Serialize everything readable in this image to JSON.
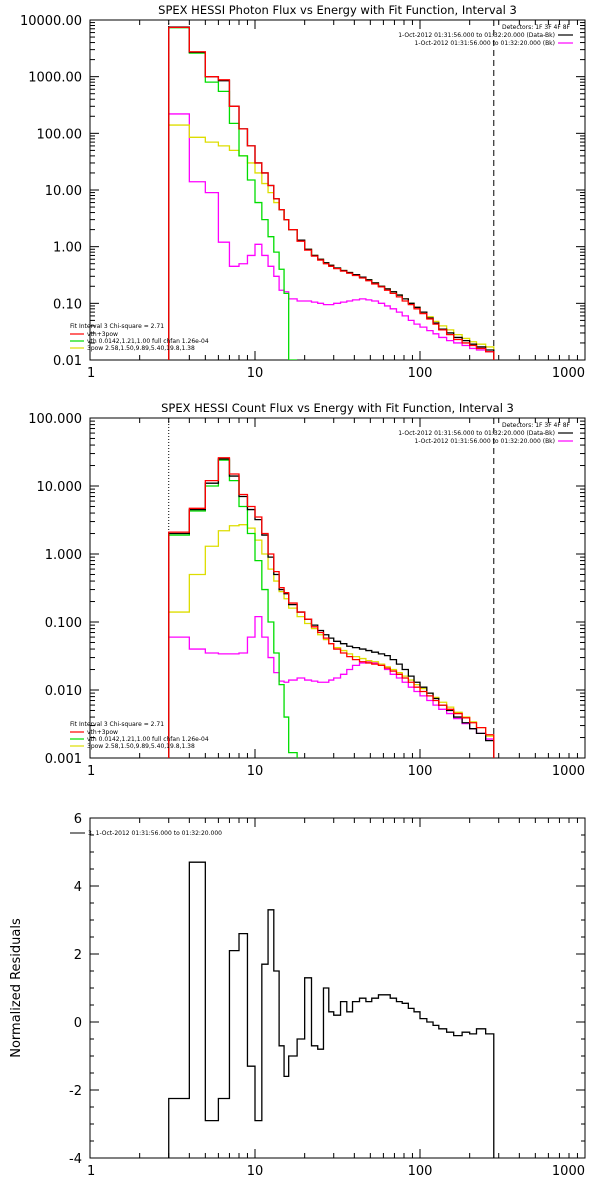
{
  "chart_data": [
    {
      "type": "line",
      "scale": {
        "x": "log",
        "y": "log"
      },
      "title": "SPEX HESSI Photon Flux vs Energy with Fit Function, Interval 3",
      "xlim": [
        1,
        1000
      ],
      "ylim": [
        0.01,
        10000
      ],
      "x_ticks": [
        1,
        10,
        100,
        1000
      ],
      "x_tick_labels": [
        "1",
        "10",
        "100",
        "1000"
      ],
      "y_ticks": [
        0.01,
        0.1,
        1,
        10,
        100,
        1000,
        10000
      ],
      "y_tick_labels": [
        "0.01",
        "0.10",
        "1.00",
        "10.00",
        "100.00",
        "1000.00",
        "10000.00"
      ],
      "legend_top_right": {
        "detectors": "Detectors: 1F 3F 4F 8F",
        "entries": [
          {
            "text": "1-Oct-2012 01:31:56.000 to 01:32:20.000 (Data-Bk)",
            "color": "#000000"
          },
          {
            "text": "1-Oct-2012 01:31:56.000 to 01:32:20.000 (Bk)",
            "color": "#ff00ff"
          }
        ]
      },
      "legend_bottom_left": {
        "header": "Fit Interval 3   Chi-square = 2.71",
        "entries": [
          {
            "text": "vth+3pow",
            "color": "#ff0000"
          },
          {
            "text": "vth 0.0142,1.21,1.00  full chfan 1.26e-04",
            "color": "#00dd00"
          },
          {
            "text": "3pow 2.58,1.50,9.89,5.40,19.8,1.38",
            "color": "#dddd00"
          }
        ]
      },
      "vlines": [
        {
          "x": 3,
          "style": "dotted",
          "color": "#000000"
        },
        {
          "x": 280,
          "style": "dashed",
          "color": "#000000"
        }
      ],
      "bin_edges": [
        3,
        4,
        5,
        6,
        7,
        8,
        9,
        10,
        11,
        12,
        13,
        14,
        15,
        16,
        18,
        20,
        22,
        24,
        26,
        28,
        30,
        33,
        36,
        39,
        43,
        47,
        51,
        56,
        61,
        66,
        72,
        78,
        85,
        92,
        100,
        110,
        120,
        130,
        145,
        160,
        180,
        200,
        220,
        250,
        280
      ],
      "series": [
        {
          "color": "#000000",
          "values": [
            7500,
            2700,
            1000,
            850,
            300,
            120,
            60,
            30,
            20,
            12,
            7,
            4.5,
            3,
            2,
            1.3,
            0.9,
            0.7,
            0.6,
            0.52,
            0.47,
            0.42,
            0.38,
            0.35,
            0.32,
            0.29,
            0.26,
            0.23,
            0.2,
            0.18,
            0.16,
            0.14,
            0.12,
            0.1,
            0.085,
            0.07,
            0.055,
            0.045,
            0.035,
            0.03,
            0.025,
            0.022,
            0.019,
            0.017,
            0.015
          ]
        },
        {
          "color": "#ff0000",
          "values": [
            7400,
            2750,
            1000,
            880,
            300,
            120,
            60,
            30,
            20,
            12,
            7,
            4.5,
            3,
            2,
            1.25,
            0.87,
            0.68,
            0.58,
            0.5,
            0.45,
            0.41,
            0.37,
            0.34,
            0.31,
            0.28,
            0.25,
            0.22,
            0.195,
            0.17,
            0.15,
            0.13,
            0.11,
            0.095,
            0.08,
            0.066,
            0.053,
            0.043,
            0.034,
            0.028,
            0.023,
            0.02,
            0.018,
            0.016,
            0.014
          ]
        },
        {
          "color": "#00dd00",
          "values": [
            7300,
            2600,
            800,
            550,
            150,
            40,
            15,
            6,
            3,
            1.5,
            0.8,
            0.4,
            0.15,
            0.008
          ]
        },
        {
          "color": "#dddd00",
          "values": [
            140,
            85,
            70,
            60,
            50,
            40,
            30,
            20,
            13,
            9,
            6,
            4.5,
            3,
            2,
            1.3,
            0.9,
            0.7,
            0.6,
            0.52,
            0.47,
            0.42,
            0.38,
            0.35,
            0.32,
            0.29,
            0.26,
            0.23,
            0.2,
            0.18,
            0.16,
            0.14,
            0.12,
            0.1,
            0.085,
            0.07,
            0.058,
            0.048,
            0.04,
            0.034,
            0.028,
            0.024,
            0.021,
            0.019,
            0.017
          ]
        },
        {
          "color": "#ff00ff",
          "values": [
            220,
            14,
            9,
            1.2,
            0.45,
            0.5,
            0.7,
            1.1,
            0.7,
            0.45,
            0.3,
            0.17,
            0.16,
            0.12,
            0.11,
            0.11,
            0.105,
            0.1,
            0.095,
            0.095,
            0.1,
            0.105,
            0.11,
            0.115,
            0.12,
            0.115,
            0.11,
            0.1,
            0.09,
            0.08,
            0.07,
            0.06,
            0.05,
            0.043,
            0.038,
            0.033,
            0.029,
            0.025,
            0.022,
            0.02,
            0.018,
            0.016,
            0.015,
            0.014
          ]
        }
      ]
    },
    {
      "type": "line",
      "scale": {
        "x": "log",
        "y": "log"
      },
      "title": "SPEX HESSI Count Flux vs Energy with Fit Function, Interval 3",
      "xlim": [
        1,
        1000
      ],
      "ylim": [
        0.001,
        100
      ],
      "x_ticks": [
        1,
        10,
        100,
        1000
      ],
      "x_tick_labels": [
        "1",
        "10",
        "100",
        "1000"
      ],
      "y_ticks": [
        0.001,
        0.01,
        0.1,
        1,
        10,
        100
      ],
      "y_tick_labels": [
        "0.001",
        "0.010",
        "0.100",
        "1.000",
        "10.000",
        "100.000"
      ],
      "legend_top_right": {
        "detectors": "Detectors: 1F 3F 4F 8F",
        "entries": [
          {
            "text": "1-Oct-2012 01:31:56.000 to 01:32:20.000 (Data-Bk)",
            "color": "#000000"
          },
          {
            "text": "1-Oct-2012 01:31:56.000 to 01:32:20.000 (Bk)",
            "color": "#ff00ff"
          }
        ]
      },
      "legend_bottom_left": {
        "header": "Fit Interval 3   Chi-square = 2.71",
        "entries": [
          {
            "text": "vth+3pow",
            "color": "#ff0000"
          },
          {
            "text": "vth 0.0142,1.21,1.00  full chfan 1.26e-04",
            "color": "#00dd00"
          },
          {
            "text": "3pow 2.58,1.50,9.89,5.40,19.8,1.38",
            "color": "#dddd00"
          }
        ]
      },
      "vlines": [
        {
          "x": 3,
          "style": "dotted",
          "color": "#000000"
        },
        {
          "x": 280,
          "style": "dashed",
          "color": "#000000"
        }
      ],
      "bin_edges": [
        3,
        4,
        5,
        6,
        7,
        8,
        9,
        10,
        11,
        12,
        13,
        14,
        15,
        16,
        18,
        20,
        22,
        24,
        26,
        28,
        30,
        33,
        36,
        39,
        43,
        47,
        51,
        56,
        61,
        66,
        72,
        78,
        85,
        92,
        100,
        110,
        120,
        130,
        145,
        160,
        180,
        200,
        220,
        250,
        280
      ],
      "series": [
        {
          "color": "#000000",
          "values": [
            2.0,
            4.5,
            11,
            25,
            14,
            7,
            4.5,
            3.2,
            1.9,
            0.9,
            0.5,
            0.3,
            0.26,
            0.18,
            0.14,
            0.11,
            0.09,
            0.075,
            0.065,
            0.058,
            0.052,
            0.048,
            0.044,
            0.042,
            0.04,
            0.038,
            0.036,
            0.034,
            0.032,
            0.028,
            0.024,
            0.02,
            0.016,
            0.013,
            0.011,
            0.009,
            0.0075,
            0.006,
            0.005,
            0.004,
            0.0033,
            0.0027,
            0.0023,
            0.0018
          ]
        },
        {
          "color": "#ff0000",
          "values": [
            2.1,
            4.7,
            12,
            26,
            15,
            7.5,
            5,
            3.5,
            2,
            1,
            0.55,
            0.32,
            0.27,
            0.19,
            0.14,
            0.11,
            0.085,
            0.07,
            0.058,
            0.048,
            0.04,
            0.035,
            0.031,
            0.028,
            0.026,
            0.025,
            0.024,
            0.023,
            0.021,
            0.019,
            0.017,
            0.015,
            0.013,
            0.011,
            0.0095,
            0.0082,
            0.007,
            0.006,
            0.0052,
            0.0045,
            0.0039,
            0.0033,
            0.0028,
            0.0022
          ]
        },
        {
          "color": "#00dd00",
          "values": [
            1.9,
            4.3,
            10,
            24,
            12,
            5,
            2,
            0.8,
            0.3,
            0.1,
            0.035,
            0.012,
            0.004,
            0.0012
          ]
        },
        {
          "color": "#dddd00",
          "values": [
            0.14,
            0.5,
            1.3,
            2.2,
            2.6,
            2.7,
            2.4,
            1.6,
            1.0,
            0.6,
            0.4,
            0.28,
            0.22,
            0.16,
            0.12,
            0.095,
            0.08,
            0.065,
            0.055,
            0.048,
            0.042,
            0.038,
            0.034,
            0.031,
            0.029,
            0.027,
            0.026,
            0.024,
            0.022,
            0.02,
            0.018,
            0.016,
            0.014,
            0.012,
            0.0105,
            0.009,
            0.0078,
            0.0066,
            0.0056,
            0.0047,
            0.004,
            0.0034,
            0.0028,
            0.0021
          ]
        },
        {
          "color": "#ff00ff",
          "values": [
            0.06,
            0.04,
            0.035,
            0.034,
            0.034,
            0.035,
            0.06,
            0.12,
            0.06,
            0.03,
            0.018,
            0.0135,
            0.013,
            0.014,
            0.015,
            0.014,
            0.0135,
            0.013,
            0.013,
            0.014,
            0.015,
            0.017,
            0.02,
            0.023,
            0.025,
            0.026,
            0.025,
            0.023,
            0.02,
            0.017,
            0.015,
            0.013,
            0.011,
            0.0095,
            0.0082,
            0.007,
            0.006,
            0.0052,
            0.0045,
            0.0038,
            0.0032,
            0.0027,
            0.0023,
            0.0019
          ]
        }
      ]
    },
    {
      "type": "line",
      "scale": {
        "x": "log",
        "y": "linear"
      },
      "title": "",
      "ylabel": "Normalized Residuals",
      "xlim": [
        1,
        1000
      ],
      "ylim": [
        -4,
        6
      ],
      "x_ticks": [
        1,
        10,
        100,
        1000
      ],
      "x_tick_labels": [
        "1",
        "10",
        "100",
        "1000"
      ],
      "y_ticks": [
        -4,
        -2,
        0,
        2,
        4,
        6
      ],
      "y_tick_labels": [
        "-4",
        "-2",
        "0",
        "2",
        "4",
        "6"
      ],
      "legend": "3.  1-Oct-2012 01:31:56.000 to 01:32:20.000",
      "bin_edges": [
        3,
        4,
        5,
        6,
        7,
        8,
        9,
        10,
        11,
        12,
        13,
        14,
        15,
        16,
        18,
        20,
        22,
        24,
        26,
        28,
        30,
        33,
        36,
        39,
        43,
        47,
        51,
        56,
        61,
        66,
        72,
        78,
        85,
        92,
        100,
        110,
        120,
        130,
        145,
        160,
        180,
        200,
        220,
        250,
        280
      ],
      "series": [
        {
          "color": "#000000",
          "values": [
            -2.25,
            4.7,
            -2.9,
            -2.25,
            2.1,
            2.6,
            -1.3,
            -2.9,
            1.7,
            3.3,
            1.5,
            -0.7,
            -1.6,
            -1.0,
            -0.5,
            1.3,
            -0.7,
            -0.8,
            1.0,
            0.3,
            0.2,
            0.6,
            0.3,
            0.6,
            0.7,
            0.6,
            0.7,
            0.8,
            0.8,
            0.7,
            0.6,
            0.55,
            0.4,
            0.3,
            0.1,
            0.0,
            -0.1,
            -0.2,
            -0.3,
            -0.4,
            -0.3,
            -0.35,
            -0.2,
            -0.35
          ]
        }
      ]
    }
  ]
}
